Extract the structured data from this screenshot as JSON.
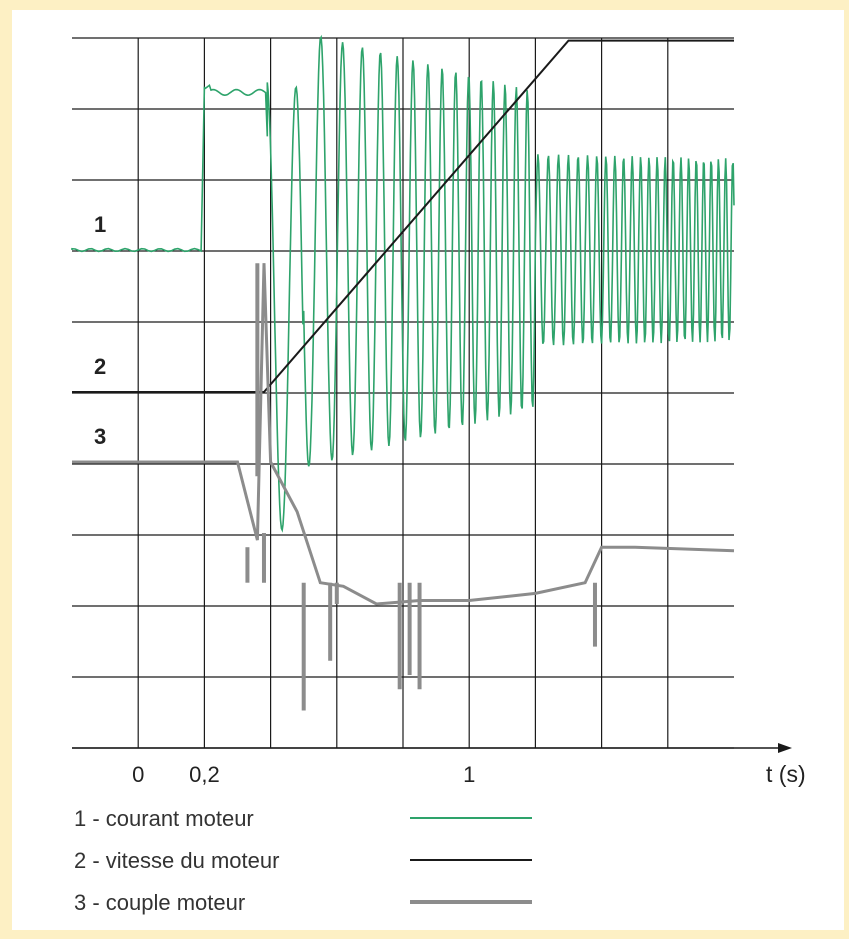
{
  "chart_data": {
    "type": "line",
    "xlabel": "t (s)",
    "x_ticks": [
      {
        "value": 0,
        "label": "0"
      },
      {
        "value": 0.2,
        "label": "0,2"
      },
      {
        "value": 1,
        "label": "1"
      }
    ],
    "xlim": [
      -0.2,
      1.8
    ],
    "grid": true,
    "series": [
      {
        "id": "1",
        "marker": "1",
        "name": "1 - courant moteur",
        "color": "#2ea36b",
        "desc_points": [
          [
            -0.2,
            0.0
          ],
          [
            0.2,
            0.0
          ],
          [
            0.2,
            2.3
          ],
          [
            0.39,
            2.2
          ],
          [
            0.39,
            1.6
          ],
          [
            1.8,
            0.0
          ]
        ]
      },
      {
        "id": "2",
        "marker": "2",
        "name": "2 - vitesse du moteur",
        "color": "#1a1a1a",
        "points": [
          [
            -0.2,
            0
          ],
          [
            0.38,
            0
          ],
          [
            1.3,
            4.95
          ],
          [
            1.8,
            4.95
          ]
        ]
      },
      {
        "id": "3",
        "marker": "3",
        "name": "3 - couple moteur",
        "color": "#8c8c8c",
        "points": [
          [
            -0.2,
            0
          ],
          [
            0.2,
            0
          ],
          [
            0.3,
            0
          ],
          [
            0.36,
            -1.1
          ],
          [
            0.38,
            2.8
          ],
          [
            0.4,
            0
          ],
          [
            0.48,
            -0.7
          ],
          [
            0.55,
            -1.7
          ],
          [
            0.62,
            -1.75
          ],
          [
            0.72,
            -2.0
          ],
          [
            0.85,
            -1.95
          ],
          [
            1.0,
            -1.95
          ],
          [
            1.2,
            -1.85
          ],
          [
            1.35,
            -1.7
          ],
          [
            1.4,
            -1.2
          ],
          [
            1.5,
            -1.2
          ],
          [
            1.8,
            -1.25
          ]
        ]
      }
    ]
  }
}
